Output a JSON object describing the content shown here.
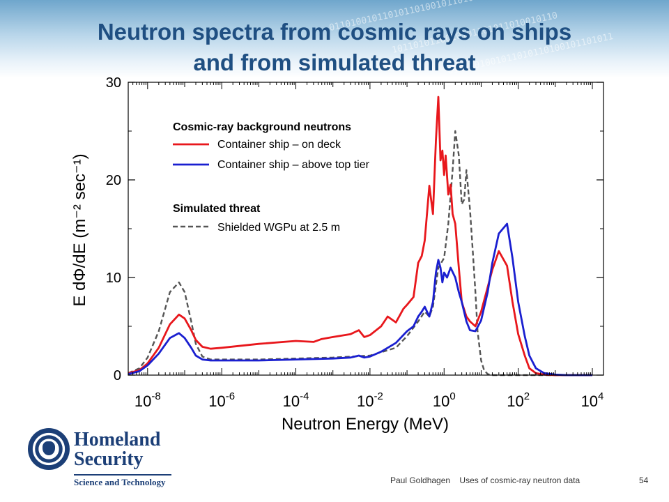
{
  "slide": {
    "title_line1": "Neutron spectra from cosmic rays on ships",
    "title_line2": "and from simulated threat",
    "footer_author": "Paul Goldhagen",
    "footer_topic": "Uses of cosmic-ray neutron data",
    "page_number": "54"
  },
  "logo": {
    "line1": "Homeland",
    "line2": "Security",
    "line3": "Science and Technology"
  },
  "chart_data": {
    "type": "line",
    "x_scale": "log",
    "xlabel": "Neutron Energy  (MeV)",
    "ylabel": "E dΦ/dE  (m⁻² sec⁻¹)",
    "xlim": [
      3e-09,
      20000.0
    ],
    "ylim": [
      0,
      30
    ],
    "x_tick_exponents": [
      -8,
      -6,
      -4,
      -2,
      0,
      2,
      4
    ],
    "y_ticks": [
      0,
      10,
      20,
      30
    ],
    "grid": false,
    "legend_position": "top-left",
    "legend": {
      "group1_title": "Cosmic-ray background neutrons",
      "group2_title": "Simulated threat"
    },
    "colors": {
      "ondeck": "#e8171c",
      "toptier": "#1a1fd0",
      "wgpu": "#555555"
    },
    "series": [
      {
        "name": "Container ship – on deck",
        "style": "solid",
        "color": "#e8171c",
        "x": [
          3e-09,
          6e-09,
          1e-08,
          2e-08,
          4e-08,
          7e-08,
          1e-07,
          1.5e-07,
          2e-07,
          3e-07,
          5e-07,
          1e-06,
          1e-05,
          0.0001,
          0.0003,
          0.0005,
          0.001,
          0.003,
          0.005,
          0.007,
          0.01,
          0.02,
          0.03,
          0.05,
          0.08,
          0.1,
          0.15,
          0.2,
          0.25,
          0.3,
          0.4,
          0.5,
          0.6,
          0.7,
          0.8,
          0.9,
          1.0,
          1.1,
          1.3,
          1.5,
          1.7,
          2.0,
          2.5,
          3.0,
          4.0,
          5.0,
          7.0,
          10,
          15,
          20,
          30,
          50,
          70,
          100,
          150,
          200,
          300,
          500,
          1000,
          2000,
          5000,
          10000
        ],
        "y": [
          0.2,
          0.5,
          1.2,
          2.8,
          5.2,
          6.2,
          5.8,
          4.6,
          3.6,
          2.9,
          2.7,
          2.8,
          3.2,
          3.5,
          3.4,
          3.7,
          3.9,
          4.2,
          4.6,
          3.9,
          4.1,
          5.0,
          6.0,
          5.4,
          6.8,
          7.2,
          8.0,
          11.5,
          12.2,
          13.8,
          19.4,
          16.5,
          24.0,
          28.5,
          22.0,
          23.0,
          20.5,
          22.5,
          18.5,
          19.5,
          16.5,
          15.5,
          11.0,
          7.5,
          6.0,
          5.5,
          5.0,
          6.5,
          9.0,
          10.8,
          12.7,
          11.2,
          7.5,
          4.2,
          2.0,
          0.7,
          0.2,
          0.05,
          0,
          0,
          0,
          0
        ]
      },
      {
        "name": "Container ship – above top tier",
        "style": "solid",
        "color": "#1a1fd0",
        "x": [
          3e-09,
          6e-09,
          1e-08,
          2e-08,
          4e-08,
          7e-08,
          1e-07,
          1.5e-07,
          2e-07,
          3e-07,
          5e-07,
          1e-06,
          1e-05,
          0.0001,
          0.001,
          0.003,
          0.005,
          0.007,
          0.01,
          0.02,
          0.05,
          0.1,
          0.15,
          0.2,
          0.25,
          0.3,
          0.4,
          0.5,
          0.6,
          0.7,
          0.8,
          0.9,
          1.0,
          1.2,
          1.5,
          2.0,
          2.5,
          3.0,
          4.0,
          5.0,
          7.0,
          10,
          15,
          20,
          30,
          50,
          70,
          100,
          150,
          200,
          300,
          500,
          1000,
          2000,
          5000,
          10000
        ],
        "y": [
          0.1,
          0.4,
          1.0,
          2.2,
          3.8,
          4.3,
          3.8,
          2.8,
          2.0,
          1.6,
          1.5,
          1.5,
          1.5,
          1.6,
          1.7,
          1.8,
          2.0,
          1.8,
          1.9,
          2.4,
          3.3,
          4.5,
          5.0,
          6.0,
          6.5,
          7.0,
          6.0,
          7.5,
          10.5,
          11.8,
          11.0,
          9.5,
          10.5,
          10.0,
          11.0,
          10.0,
          8.5,
          7.5,
          5.5,
          4.6,
          4.5,
          5.6,
          8.5,
          11.5,
          14.5,
          15.5,
          12.0,
          7.5,
          4.0,
          2.0,
          0.7,
          0.2,
          0.05,
          0,
          0,
          0
        ]
      },
      {
        "name": "Shielded WGPu at 2.5 m",
        "style": "dashed",
        "color": "#555555",
        "x": [
          3e-09,
          6e-09,
          1e-08,
          2e-08,
          4e-08,
          7e-08,
          1e-07,
          1.5e-07,
          2e-07,
          3e-07,
          5e-07,
          1e-06,
          1e-05,
          0.0001,
          0.001,
          0.01,
          0.05,
          0.1,
          0.2,
          0.3,
          0.4,
          0.5,
          0.7,
          1.0,
          1.3,
          1.7,
          2.0,
          2.5,
          3.0,
          3.5,
          4.0,
          5.0,
          6.0,
          7.0,
          8.0,
          10,
          12,
          15,
          20,
          30,
          100,
          10000
        ],
        "y": [
          0.2,
          0.7,
          1.8,
          4.5,
          8.5,
          9.5,
          8.5,
          5.5,
          3.2,
          1.9,
          1.6,
          1.6,
          1.6,
          1.7,
          1.8,
          2.0,
          2.8,
          4.0,
          5.5,
          6.5,
          6.0,
          7.0,
          11.0,
          12.0,
          15.5,
          21.0,
          25.0,
          22.5,
          17.5,
          18.0,
          21.0,
          17.0,
          12.5,
          8.5,
          4.5,
          1.5,
          0.5,
          0.1,
          0,
          0,
          0,
          0
        ]
      }
    ]
  }
}
